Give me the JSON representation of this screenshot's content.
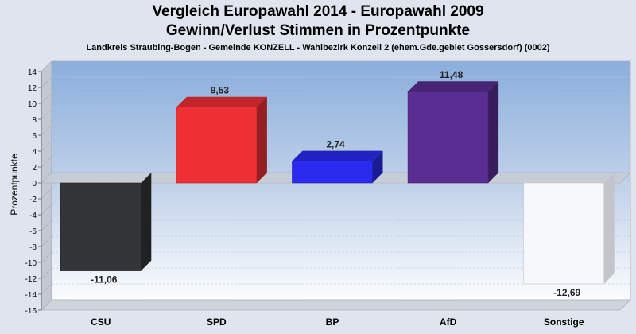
{
  "chart_data": {
    "type": "bar",
    "title": "Vergleich Europawahl 2014 - Europawahl 2009",
    "title2": "Gewinn/Verlust Stimmen in Prozentpunkte",
    "subtitle": "Landkreis Straubing-Bogen - Gemeinde KONZELL - Wahlbezirk Konzell 2 (ehem.Gde.gebiet Gossersdorf) (0002)",
    "ylabel": "Prozentpunkte",
    "xlabel": "",
    "categories": [
      "CSU",
      "SPD",
      "BP",
      "AfD",
      "Sonstige"
    ],
    "values": [
      -11.06,
      9.53,
      2.74,
      11.48,
      -12.69
    ],
    "value_labels": [
      "-11,06",
      "9,53",
      "2,74",
      "11,48",
      "-12,69"
    ],
    "colors": [
      "#333539",
      "#ee3035",
      "#2b2bf0",
      "#5a2d92",
      "#f7f8fc"
    ],
    "ylim": [
      -16,
      14
    ],
    "yticks": [
      14,
      12,
      10,
      8,
      6,
      4,
      2,
      0,
      -2,
      -4,
      -6,
      -8,
      -10,
      -12,
      -14,
      -16
    ],
    "grid": true,
    "legend": "none"
  }
}
